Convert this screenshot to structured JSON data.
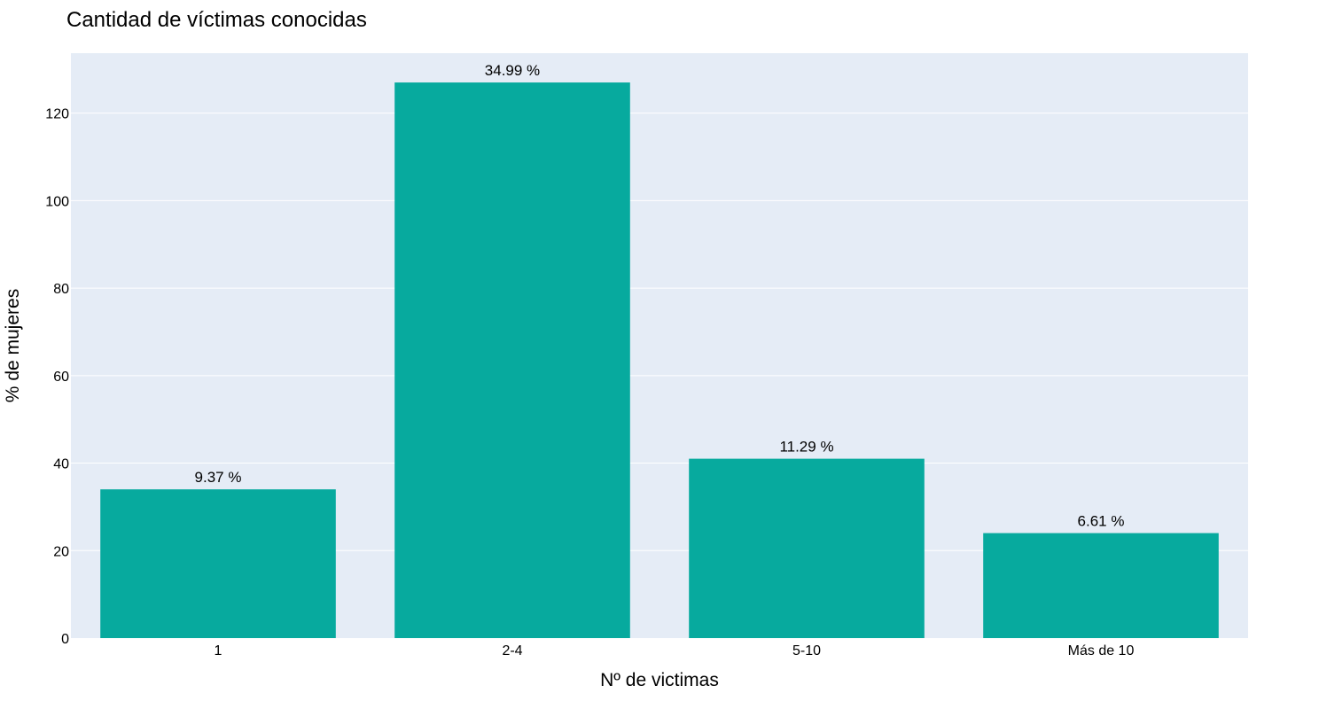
{
  "chart_data": {
    "type": "bar",
    "title": "Cantidad de víctimas conocidas",
    "xlabel": "Nº de victimas",
    "ylabel": "% de mujeres",
    "categories": [
      "1",
      "2-4",
      "5-10",
      "Más de 10"
    ],
    "values": [
      34,
      127,
      41,
      24
    ],
    "data_labels": [
      "9.37 %",
      "34.99 %",
      "11.29 %",
      "6.61 %"
    ],
    "ylim": [
      0,
      133.7
    ],
    "yticks": [
      0,
      20,
      40,
      60,
      80,
      100,
      120
    ],
    "grid": true,
    "legend": "none",
    "colors": {
      "bar": "#07aa9e",
      "plot_background": "#e5ecf6",
      "gridline": "#ffffff",
      "text": "#000000"
    }
  }
}
